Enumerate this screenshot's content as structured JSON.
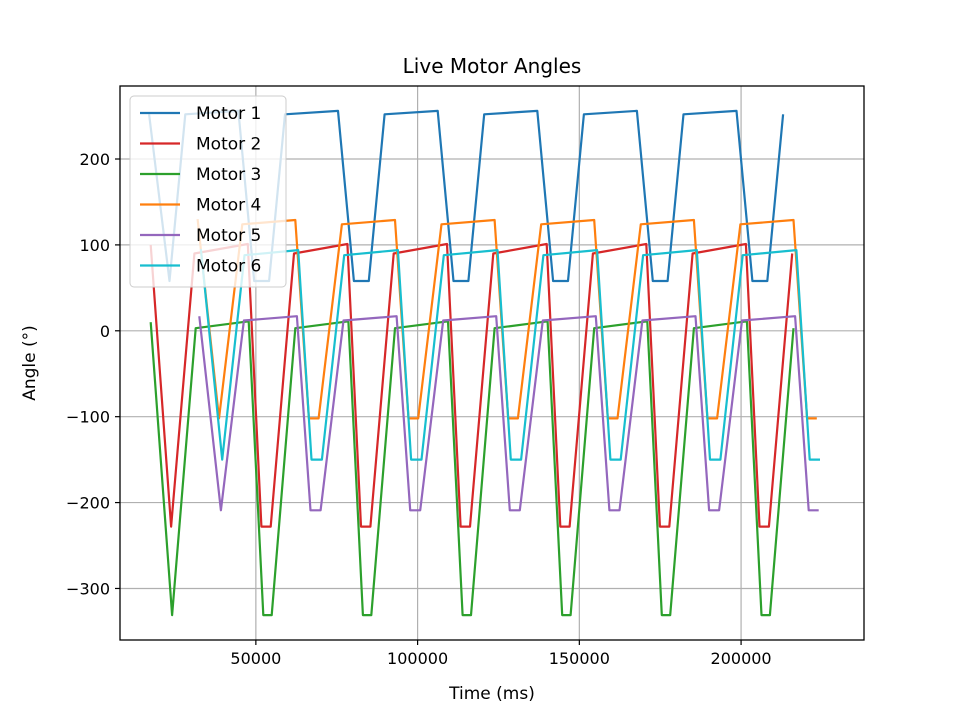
{
  "chart_data": {
    "type": "line",
    "title": "Live Motor Angles",
    "xlabel": "Time (ms)",
    "ylabel": "Angle (°)",
    "xlim": [
      8000,
      238000
    ],
    "ylim": [
      -360,
      285
    ],
    "xticks": [
      50000,
      100000,
      150000,
      200000
    ],
    "yticks": [
      200,
      100,
      0,
      -100,
      -200,
      -300
    ],
    "xtick_labels": [
      "50000",
      "100000",
      "150000",
      "200000"
    ],
    "ytick_labels": [
      "200",
      "100",
      "0",
      "−100",
      "−200",
      "−300"
    ],
    "grid": true,
    "legend_position": "upper-left",
    "period": 15400,
    "cycles": 7,
    "series": [
      {
        "name": "Motor 1",
        "color": "#1f77b4",
        "start": 17000,
        "cycle": [
          [
            0,
            252
          ],
          [
            6300,
            58
          ],
          [
            11200,
            252
          ],
          [
            27600,
            256
          ],
          [
            32500,
            58
          ]
        ],
        "end": 214000
      },
      {
        "name": "Motor 2",
        "color": "#d62728",
        "start": 17500,
        "cycle": [
          [
            0,
            100
          ],
          [
            6300,
            -228
          ],
          [
            13500,
            90
          ],
          [
            30000,
            101
          ],
          [
            34200,
            -228
          ]
        ],
        "end": 222000
      },
      {
        "name": "Motor 3",
        "color": "#2ca02c",
        "start": 17500,
        "cycle": [
          [
            0,
            10
          ],
          [
            6600,
            -331
          ],
          [
            13900,
            3
          ],
          [
            30300,
            11
          ],
          [
            34800,
            -331
          ]
        ],
        "end": 222000
      },
      {
        "name": "Motor 4",
        "color": "#ff7f0e",
        "start": 32000,
        "cycle": [
          [
            0,
            130
          ],
          [
            6600,
            -102
          ],
          [
            13800,
            124
          ],
          [
            30200,
            129
          ],
          [
            34400,
            -102
          ]
        ],
        "end": 229000
      },
      {
        "name": "Motor 5",
        "color": "#9467bd",
        "start": 32500,
        "cycle": [
          [
            0,
            17
          ],
          [
            6700,
            -209
          ],
          [
            13800,
            12
          ],
          [
            30200,
            17
          ],
          [
            34400,
            -209
          ]
        ],
        "end": 229000
      },
      {
        "name": "Motor 6",
        "color": "#17becf",
        "start": 33000,
        "cycle": [
          [
            0,
            95
          ],
          [
            6600,
            -150
          ],
          [
            13500,
            88
          ],
          [
            30100,
            94
          ],
          [
            34200,
            -150
          ]
        ],
        "end": 229000
      }
    ]
  }
}
